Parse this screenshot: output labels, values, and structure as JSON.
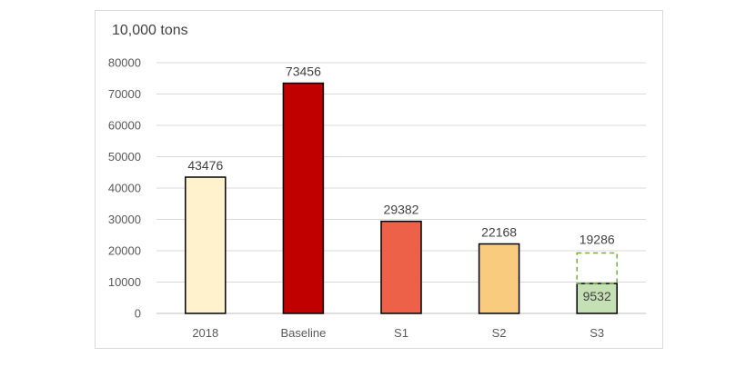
{
  "chart_data": {
    "type": "bar",
    "unit_label": "10,000 tons",
    "categories": [
      "2018",
      "Baseline",
      "S1",
      "S2",
      "S3"
    ],
    "values": [
      43476,
      73456,
      29382,
      22168,
      9532
    ],
    "s3_dashed_total": 19286,
    "ylim": [
      0,
      80000
    ],
    "yticks": [
      0,
      10000,
      20000,
      30000,
      40000,
      50000,
      60000,
      70000,
      80000
    ],
    "grid": true,
    "colors": [
      "#fff2cc",
      "#c00000",
      "#ed6149",
      "#f8cb7f",
      "#c5e0b4"
    ],
    "outline_color": "#000000",
    "dashed_outline_color": "#70ad47"
  }
}
